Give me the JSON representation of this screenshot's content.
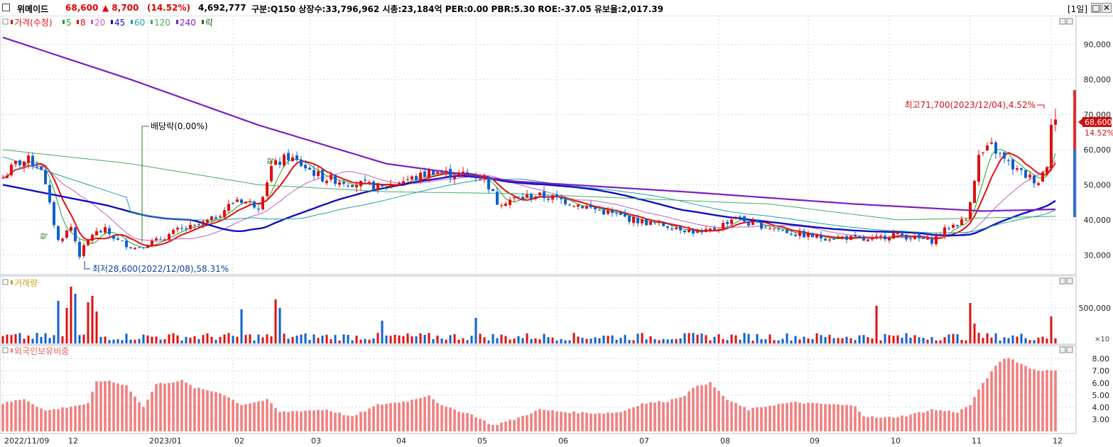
{
  "header": {
    "name": "위메이드",
    "price": "68,600",
    "change": "▲ 8,700",
    "change_pct": "(14.52%)",
    "volume": "4,692,777",
    "info": "구분:Q150 상장수:33,796,962 시총:23,184억 PER:0.00 PBR:5.30 ROE:-37.05 유보율:2,017.39",
    "period": "[1일]",
    "btn_restore": "□",
    "btn_close": "✕"
  },
  "legend": {
    "price": "가격(수정)",
    "ma": [
      {
        "label": "5",
        "color": "#22a022"
      },
      {
        "label": "8",
        "color": "#e01010"
      },
      {
        "label": "20",
        "color": "#c060c0"
      },
      {
        "label": "45",
        "color": "#1010c0"
      },
      {
        "label": "60",
        "color": "#20a0a0"
      },
      {
        "label": "120",
        "color": "#40b060"
      },
      {
        "label": "240",
        "color": "#7a20c0"
      },
      {
        "label": "락",
        "color": "#207020"
      }
    ],
    "volume": "거래량",
    "foreign": "외국인보유비중"
  },
  "annotations": {
    "high": "최고71,700(2023/12/04),4.52%",
    "low": "최저28,600(2022/12/08),58.31%",
    "dividend": "배당락(0.00%)",
    "current_price_tag": "68,600",
    "current_pct_tag": "14.52%",
    "vol_unit": "×10",
    "rights_a": "락",
    "rights_b": "락"
  },
  "colors": {
    "up": "#e01010",
    "down": "#1060d0",
    "grid": "#d0d8e0",
    "foreign_bar": "#f08080"
  },
  "chart_data": [
    {
      "type": "candlestick",
      "title": "위메이드 일봉",
      "ylim": [
        25000,
        97000
      ],
      "yticks": [
        "90,000",
        "80,000",
        "70,000",
        "60,000",
        "50,000",
        "40,000",
        "30,000"
      ],
      "ytick_values": [
        90000,
        80000,
        70000,
        60000,
        50000,
        40000,
        30000
      ],
      "x_labels": [
        "2022/11/09",
        "12",
        "2023/01",
        "02",
        "03",
        "04",
        "05",
        "06",
        "07",
        "08",
        "09",
        "10",
        "11",
        "12"
      ],
      "x_label_index": [
        0,
        15,
        34,
        54,
        72,
        92,
        111,
        130,
        149,
        168,
        189,
        208,
        227,
        246
      ],
      "close_anchors": [
        [
          0,
          52000
        ],
        [
          3,
          56000
        ],
        [
          6,
          57000
        ],
        [
          9,
          55000
        ],
        [
          11,
          44000
        ],
        [
          13,
          34000
        ],
        [
          16,
          38000
        ],
        [
          18,
          30000
        ],
        [
          21,
          36000
        ],
        [
          24,
          37000
        ],
        [
          27,
          34000
        ],
        [
          31,
          32000
        ],
        [
          36,
          34000
        ],
        [
          41,
          37000
        ],
        [
          45,
          38000
        ],
        [
          49,
          40000
        ],
        [
          55,
          46000
        ],
        [
          60,
          44000
        ],
        [
          63,
          55000
        ],
        [
          67,
          58000
        ],
        [
          71,
          55000
        ],
        [
          75,
          52000
        ],
        [
          80,
          51000
        ],
        [
          85,
          50000
        ],
        [
          89,
          49000
        ],
        [
          93,
          51000
        ],
        [
          97,
          52000
        ],
        [
          101,
          54000
        ],
        [
          105,
          53000
        ],
        [
          109,
          53000
        ],
        [
          113,
          52000
        ],
        [
          116,
          45000
        ],
        [
          120,
          46000
        ],
        [
          125,
          47000
        ],
        [
          130,
          46000
        ],
        [
          136,
          44000
        ],
        [
          142,
          42000
        ],
        [
          148,
          40000
        ],
        [
          152,
          39000
        ],
        [
          158,
          38000
        ],
        [
          164,
          36000
        ],
        [
          168,
          38000
        ],
        [
          172,
          41000
        ],
        [
          175,
          39000
        ],
        [
          180,
          38000
        ],
        [
          186,
          36000
        ],
        [
          192,
          35000
        ],
        [
          198,
          35000
        ],
        [
          203,
          34000
        ],
        [
          209,
          36000
        ],
        [
          213,
          35000
        ],
        [
          218,
          34000
        ],
        [
          222,
          38000
        ],
        [
          226,
          40000
        ],
        [
          229,
          58000
        ],
        [
          232,
          61000
        ],
        [
          235,
          57000
        ],
        [
          238,
          54000
        ],
        [
          241,
          52000
        ],
        [
          243,
          51000
        ],
        [
          245,
          56000
        ],
        [
          246,
          68600
        ]
      ],
      "volume": {
        "label": "거래량",
        "ytick": "500,000",
        "ytick_value": 500000,
        "ylim": [
          0,
          900000
        ],
        "spikes": [
          [
            13,
            600000
          ],
          [
            15,
            500000
          ],
          [
            16,
            800000
          ],
          [
            17,
            700000
          ],
          [
            20,
            580000
          ],
          [
            21,
            670000
          ],
          [
            22,
            450000
          ],
          [
            56,
            480000
          ],
          [
            64,
            620000
          ],
          [
            65,
            500000
          ],
          [
            89,
            320000
          ],
          [
            111,
            360000
          ],
          [
            205,
            530000
          ],
          [
            227,
            570000
          ],
          [
            228,
            280000
          ],
          [
            246,
            380000
          ]
        ]
      },
      "foreign_holding": {
        "label": "외국인보유비중",
        "ylim": [
          2,
          8.8
        ],
        "yticks": [
          "8.00",
          "7.00",
          "6.00",
          "5.00",
          "4.00",
          "3.00"
        ],
        "ytick_values": [
          8,
          7,
          6,
          5,
          4,
          3
        ],
        "anchors": [
          [
            0,
            4.3
          ],
          [
            5,
            4.7
          ],
          [
            10,
            3.7
          ],
          [
            15,
            4.0
          ],
          [
            20,
            4.3
          ],
          [
            22,
            6.1
          ],
          [
            24,
            6.2
          ],
          [
            29,
            5.8
          ],
          [
            33,
            4.0
          ],
          [
            36,
            5.9
          ],
          [
            42,
            6.2
          ],
          [
            45,
            5.6
          ],
          [
            51,
            5.2
          ],
          [
            56,
            4.2
          ],
          [
            62,
            4.6
          ],
          [
            65,
            3.6
          ],
          [
            70,
            3.7
          ],
          [
            76,
            3.8
          ],
          [
            82,
            3.2
          ],
          [
            88,
            4.2
          ],
          [
            95,
            4.5
          ],
          [
            100,
            5.0
          ],
          [
            103,
            4.1
          ],
          [
            110,
            3.4
          ],
          [
            115,
            2.5
          ],
          [
            120,
            3.0
          ],
          [
            126,
            3.8
          ],
          [
            132,
            3.6
          ],
          [
            140,
            3.5
          ],
          [
            145,
            3.6
          ],
          [
            150,
            4.3
          ],
          [
            156,
            4.5
          ],
          [
            160,
            5.0
          ],
          [
            163,
            5.8
          ],
          [
            166,
            6.0
          ],
          [
            170,
            4.6
          ],
          [
            175,
            3.8
          ],
          [
            181,
            4.2
          ],
          [
            186,
            4.4
          ],
          [
            190,
            4.3
          ],
          [
            196,
            4.2
          ],
          [
            200,
            4.1
          ],
          [
            202,
            3.3
          ],
          [
            206,
            3.1
          ],
          [
            212,
            3.3
          ],
          [
            218,
            3.8
          ],
          [
            224,
            3.6
          ],
          [
            227,
            4.2
          ],
          [
            230,
            6.0
          ],
          [
            234,
            7.8
          ],
          [
            236,
            8.1
          ],
          [
            240,
            7.4
          ],
          [
            243,
            7.0
          ],
          [
            246,
            7.1
          ]
        ]
      }
    }
  ]
}
